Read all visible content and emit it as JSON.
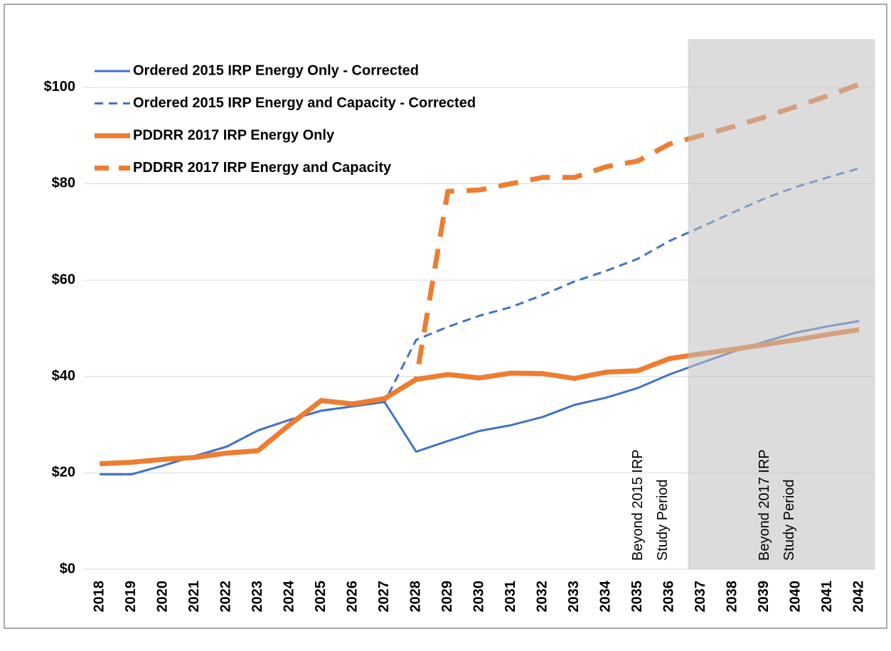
{
  "chart_data": {
    "type": "line",
    "categories": [
      "2018",
      "2019",
      "2020",
      "2021",
      "2022",
      "2023",
      "2024",
      "2025",
      "2026",
      "2027",
      "2028",
      "2029",
      "2030",
      "2031",
      "2032",
      "2033",
      "2034",
      "2035",
      "2036",
      "2037",
      "2038",
      "2039",
      "2040",
      "2041",
      "2042"
    ],
    "series": [
      {
        "name": "Ordered 2015 IRP Energy Only - Corrected",
        "color": "#4472c4",
        "dashed": false,
        "width": 3,
        "values": [
          19.7,
          19.7,
          21.5,
          23.5,
          25.4,
          28.8,
          31,
          32.9,
          33.8,
          34.7,
          24.4,
          26.6,
          28.7,
          29.9,
          31.6,
          34.1,
          35.6,
          37.6,
          40.4,
          42.8,
          45.1,
          47.2,
          49.1,
          50.4,
          51.5
        ]
      },
      {
        "name": "Ordered 2015 IRP Energy and Capacity - Corrected",
        "color": "#4472c4",
        "dashed": true,
        "width": 3,
        "values": [
          19.7,
          19.7,
          21.5,
          23.5,
          25.4,
          28.8,
          31,
          32.9,
          33.8,
          34.7,
          47.6,
          50.3,
          52.6,
          54.4,
          56.9,
          59.7,
          61.9,
          64.4,
          68.1,
          71,
          74,
          76.9,
          79.3,
          81.3,
          83.2
        ]
      },
      {
        "name": "PDDRR 2017 IRP Energy Only",
        "color": "#ed7d31",
        "dashed": false,
        "width": 7,
        "values": [
          21.9,
          22.2,
          22.8,
          23.2,
          24.1,
          24.6,
          30,
          35,
          34.3,
          35.4,
          39.4,
          40.4,
          39.7,
          40.7,
          40.6,
          39.6,
          40.9,
          41.2,
          43.7,
          44.7,
          45.6,
          46.6,
          47.6,
          48.7,
          49.7
        ]
      },
      {
        "name": "PDDRR 2017 IRP Energy and Capacity",
        "color": "#ed7d31",
        "dashed": true,
        "width": 7,
        "values": [
          21.9,
          22.2,
          22.8,
          23.2,
          24.1,
          24.6,
          30,
          35,
          34.3,
          35.4,
          39.4,
          78.4,
          78.7,
          80,
          81.3,
          81.3,
          83.5,
          84.7,
          88.2,
          90,
          91.8,
          93.8,
          96,
          98.2,
          100.6
        ]
      }
    ],
    "ylim": [
      0,
      110
    ],
    "yticks": [
      {
        "value": 0,
        "label": "$0"
      },
      {
        "value": 20,
        "label": "$20"
      },
      {
        "value": 40,
        "label": "$40"
      },
      {
        "value": 60,
        "label": "$60"
      },
      {
        "value": 80,
        "label": "$80"
      },
      {
        "value": 100,
        "label": "$100"
      }
    ],
    "grid": true,
    "legend": "top-left",
    "shade": {
      "from": "2036",
      "color": "#bfbfbf"
    },
    "annotations": [
      {
        "lines": [
          "Beyond 2015 IRP",
          "Study Period"
        ],
        "category": "2035"
      },
      {
        "lines": [
          "Beyond 2017 IRP",
          "Study Period"
        ],
        "category": "2039"
      }
    ]
  }
}
